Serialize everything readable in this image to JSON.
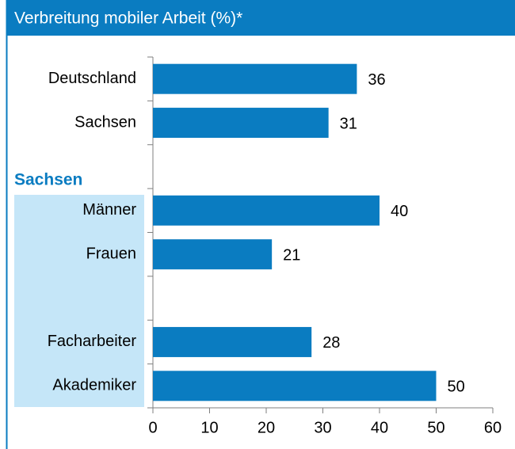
{
  "chart_data": {
    "type": "bar",
    "orientation": "horizontal",
    "title": "Verbreitung mobiler Arbeit (%)*",
    "group_label": "Sachsen",
    "categories": [
      "Deutschland",
      "Sachsen",
      null,
      "Männer",
      "Frauen",
      null,
      "Facharbeiter",
      "Akademiker"
    ],
    "values": [
      36,
      31,
      null,
      40,
      21,
      null,
      28,
      50
    ],
    "color": "#0a7cc1",
    "xlim": [
      0,
      60
    ],
    "xticks": [
      0,
      10,
      20,
      30,
      40,
      50,
      60
    ]
  }
}
